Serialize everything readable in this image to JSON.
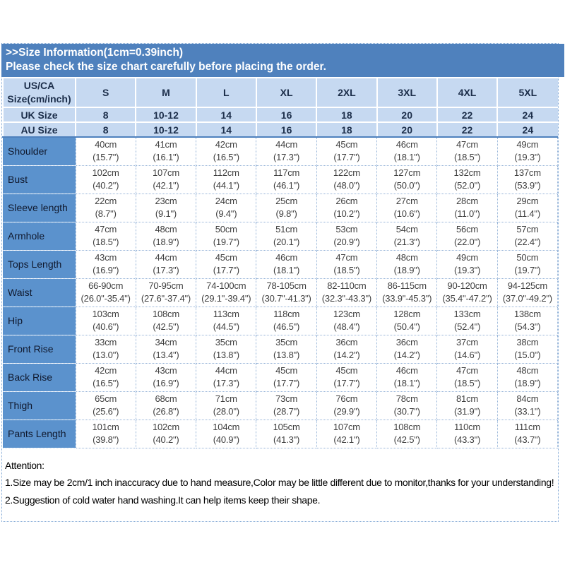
{
  "banner": {
    "line1": ">>Size Information(1cm=0.39inch)",
    "line2": "Please check the size chart carefully before placing the order."
  },
  "colors": {
    "banner_blue": "#4f81bd",
    "header_fill_light_blue": "#c6d9f1",
    "label_column_blue": "#5b92cd",
    "grid_dotted_blue": "#95b3d7",
    "cell_text": "#3f3f3f",
    "header_text": "#1c2e4a"
  },
  "table": {
    "corner_line1": "US/CA",
    "corner_line2": "Size(cm/inch)",
    "size_columns": [
      "S",
      "M",
      "L",
      "XL",
      "2XL",
      "3XL",
      "4XL",
      "5XL"
    ],
    "uk_row": {
      "label": "UK Size",
      "values": [
        "8",
        "10-12",
        "14",
        "16",
        "18",
        "20",
        "22",
        "24"
      ]
    },
    "au_row": {
      "label": "AU Size",
      "values": [
        "8",
        "10-12",
        "14",
        "16",
        "18",
        "20",
        "22",
        "24"
      ]
    },
    "rows": [
      {
        "label": "Shoulder",
        "cells": [
          {
            "cm": "40cm",
            "inch": "(15.7\")"
          },
          {
            "cm": "41cm",
            "inch": "(16.1\")"
          },
          {
            "cm": "42cm",
            "inch": "(16.5\")"
          },
          {
            "cm": "44cm",
            "inch": "(17.3\")"
          },
          {
            "cm": "45cm",
            "inch": "(17.7\")"
          },
          {
            "cm": "46cm",
            "inch": "(18.1\")"
          },
          {
            "cm": "47cm",
            "inch": "(18.5\")"
          },
          {
            "cm": "49cm",
            "inch": "(19.3\")"
          }
        ]
      },
      {
        "label": "Bust",
        "cells": [
          {
            "cm": "102cm",
            "inch": "(40.2\")"
          },
          {
            "cm": "107cm",
            "inch": "(42.1\")"
          },
          {
            "cm": "112cm",
            "inch": "(44.1\")"
          },
          {
            "cm": "117cm",
            "inch": "(46.1\")"
          },
          {
            "cm": "122cm",
            "inch": "(48.0\")"
          },
          {
            "cm": "127cm",
            "inch": "(50.0\")"
          },
          {
            "cm": "132cm",
            "inch": "(52.0\")"
          },
          {
            "cm": "137cm",
            "inch": "(53.9\")"
          }
        ]
      },
      {
        "label": "Sleeve length",
        "cells": [
          {
            "cm": "22cm",
            "inch": "(8.7\")"
          },
          {
            "cm": "23cm",
            "inch": "(9.1\")"
          },
          {
            "cm": "24cm",
            "inch": "(9.4\")"
          },
          {
            "cm": "25cm",
            "inch": "(9.8\")"
          },
          {
            "cm": "26cm",
            "inch": "(10.2\")"
          },
          {
            "cm": "27cm",
            "inch": "(10.6\")"
          },
          {
            "cm": "28cm",
            "inch": "(11.0\")"
          },
          {
            "cm": "29cm",
            "inch": "(11.4\")"
          }
        ]
      },
      {
        "label": "Armhole",
        "cells": [
          {
            "cm": "47cm",
            "inch": "(18.5\")"
          },
          {
            "cm": "48cm",
            "inch": "(18.9\")"
          },
          {
            "cm": "50cm",
            "inch": "(19.7\")"
          },
          {
            "cm": "51cm",
            "inch": "(20.1\")"
          },
          {
            "cm": "53cm",
            "inch": "(20.9\")"
          },
          {
            "cm": "54cm",
            "inch": "(21.3\")"
          },
          {
            "cm": "56cm",
            "inch": "(22.0\")"
          },
          {
            "cm": "57cm",
            "inch": "(22.4\")"
          }
        ]
      },
      {
        "label": "Tops Length",
        "cells": [
          {
            "cm": "43cm",
            "inch": "(16.9\")"
          },
          {
            "cm": "44cm",
            "inch": "(17.3\")"
          },
          {
            "cm": "45cm",
            "inch": "(17.7\")"
          },
          {
            "cm": "46cm",
            "inch": "(18.1\")"
          },
          {
            "cm": "47cm",
            "inch": "(18.5\")"
          },
          {
            "cm": "48cm",
            "inch": "(18.9\")"
          },
          {
            "cm": "49cm",
            "inch": "(19.3\")"
          },
          {
            "cm": "50cm",
            "inch": "(19.7\")"
          }
        ]
      },
      {
        "label": "Waist",
        "cells": [
          {
            "cm": "66-90cm",
            "inch": "(26.0\"-35.4\")"
          },
          {
            "cm": "70-95cm",
            "inch": "(27.6\"-37.4\")"
          },
          {
            "cm": "74-100cm",
            "inch": "(29.1\"-39.4\")"
          },
          {
            "cm": "78-105cm",
            "inch": "(30.7\"-41.3\")"
          },
          {
            "cm": "82-110cm",
            "inch": "(32.3\"-43.3\")"
          },
          {
            "cm": "86-115cm",
            "inch": "(33.9\"-45.3\")"
          },
          {
            "cm": "90-120cm",
            "inch": "(35.4\"-47.2\")"
          },
          {
            "cm": "94-125cm",
            "inch": "(37.0\"-49.2\")"
          }
        ]
      },
      {
        "label": "Hip",
        "cells": [
          {
            "cm": "103cm",
            "inch": "(40.6\")"
          },
          {
            "cm": "108cm",
            "inch": "(42.5\")"
          },
          {
            "cm": "113cm",
            "inch": "(44.5\")"
          },
          {
            "cm": "118cm",
            "inch": "(46.5\")"
          },
          {
            "cm": "123cm",
            "inch": "(48.4\")"
          },
          {
            "cm": "128cm",
            "inch": "(50.4\")"
          },
          {
            "cm": "133cm",
            "inch": "(52.4\")"
          },
          {
            "cm": "138cm",
            "inch": "(54.3\")"
          }
        ]
      },
      {
        "label": "Front Rise",
        "cells": [
          {
            "cm": "33cm",
            "inch": "(13.0\")"
          },
          {
            "cm": "34cm",
            "inch": "(13.4\")"
          },
          {
            "cm": "35cm",
            "inch": "(13.8\")"
          },
          {
            "cm": "35cm",
            "inch": "(13.8\")"
          },
          {
            "cm": "36cm",
            "inch": "(14.2\")"
          },
          {
            "cm": "36cm",
            "inch": "(14.2\")"
          },
          {
            "cm": "37cm",
            "inch": "(14.6\")"
          },
          {
            "cm": "38cm",
            "inch": "(15.0\")"
          }
        ]
      },
      {
        "label": "Back Rise",
        "cells": [
          {
            "cm": "42cm",
            "inch": "(16.5\")"
          },
          {
            "cm": "43cm",
            "inch": "(16.9\")"
          },
          {
            "cm": "44cm",
            "inch": "(17.3\")"
          },
          {
            "cm": "45cm",
            "inch": "(17.7\")"
          },
          {
            "cm": "45cm",
            "inch": "(17.7\")"
          },
          {
            "cm": "46cm",
            "inch": "(18.1\")"
          },
          {
            "cm": "47cm",
            "inch": "(18.5\")"
          },
          {
            "cm": "48cm",
            "inch": "(18.9\")"
          }
        ]
      },
      {
        "label": "Thigh",
        "cells": [
          {
            "cm": "65cm",
            "inch": "(25.6\")"
          },
          {
            "cm": "68cm",
            "inch": "(26.8\")"
          },
          {
            "cm": "71cm",
            "inch": "(28.0\")"
          },
          {
            "cm": "73cm",
            "inch": "(28.7\")"
          },
          {
            "cm": "76cm",
            "inch": "(29.9\")"
          },
          {
            "cm": "78cm",
            "inch": "(30.7\")"
          },
          {
            "cm": "81cm",
            "inch": "(31.9\")"
          },
          {
            "cm": "84cm",
            "inch": "(33.1\")"
          }
        ]
      },
      {
        "label": "Pants Length",
        "cells": [
          {
            "cm": "101cm",
            "inch": "(39.8\")"
          },
          {
            "cm": "102cm",
            "inch": "(40.2\")"
          },
          {
            "cm": "104cm",
            "inch": "(40.9\")"
          },
          {
            "cm": "105cm",
            "inch": "(41.3\")"
          },
          {
            "cm": "107cm",
            "inch": "(42.1\")"
          },
          {
            "cm": "108cm",
            "inch": "(42.5\")"
          },
          {
            "cm": "110cm",
            "inch": "(43.3\")"
          },
          {
            "cm": "111cm",
            "inch": "(43.7\")"
          }
        ]
      }
    ]
  },
  "attention": {
    "title": "Attention:",
    "line1": "1.Size may be 2cm/1 inch inaccuracy due to hand measure,Color may be little different due to monitor,thanks for your understanding!",
    "line2": "2.Suggestion of cold water hand washing.It can help items keep their shape."
  }
}
